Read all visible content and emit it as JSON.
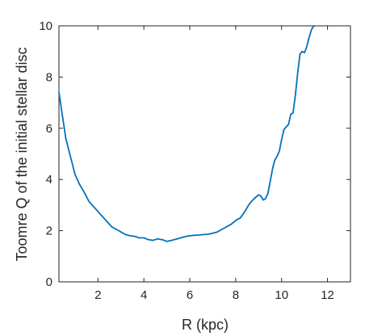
{
  "chart_data": {
    "type": "line",
    "title": "",
    "xlabel": "R (kpc)",
    "ylabel": "Toomre Q of the initial stellar disc",
    "xlim": [
      0.3,
      13
    ],
    "ylim": [
      0,
      10
    ],
    "xticks": [
      2,
      4,
      6,
      8,
      10,
      12
    ],
    "yticks": [
      0,
      2,
      4,
      6,
      8,
      10
    ],
    "grid": false,
    "box": true,
    "line_color": "#0072BD",
    "axis_color": "#262626",
    "series": [
      {
        "x": [
          0.3,
          0.4,
          0.5,
          0.6,
          0.8,
          1.0,
          1.2,
          1.4,
          1.6,
          1.8,
          2.0,
          2.2,
          2.4,
          2.6,
          2.8,
          3.0,
          3.2,
          3.4,
          3.6,
          3.8,
          4.0,
          4.2,
          4.4,
          4.6,
          4.8,
          5.0,
          5.2,
          5.4,
          5.6,
          5.8,
          6.0,
          6.2,
          6.4,
          6.6,
          6.8,
          7.0,
          7.2,
          7.4,
          7.6,
          7.8,
          8.0,
          8.2,
          8.4,
          8.6,
          8.8,
          9.0,
          9.1,
          9.2,
          9.3,
          9.4,
          9.5,
          9.6,
          9.7,
          9.8,
          9.9,
          10.0,
          10.1,
          10.2,
          10.3,
          10.4,
          10.5,
          10.6,
          10.7,
          10.8,
          10.9,
          11.0,
          11.1,
          11.2,
          11.3,
          11.4,
          11.45
        ],
        "y": [
          7.4,
          6.8,
          6.2,
          5.6,
          4.9,
          4.2,
          3.8,
          3.5,
          3.15,
          2.95,
          2.75,
          2.55,
          2.35,
          2.15,
          2.05,
          1.95,
          1.85,
          1.8,
          1.78,
          1.72,
          1.72,
          1.65,
          1.62,
          1.68,
          1.65,
          1.58,
          1.62,
          1.67,
          1.72,
          1.77,
          1.8,
          1.82,
          1.83,
          1.85,
          1.86,
          1.9,
          1.95,
          2.05,
          2.15,
          2.25,
          2.4,
          2.5,
          2.75,
          3.05,
          3.25,
          3.4,
          3.35,
          3.2,
          3.25,
          3.45,
          3.9,
          4.4,
          4.75,
          4.9,
          5.1,
          5.55,
          5.95,
          6.05,
          6.15,
          6.55,
          6.6,
          7.3,
          8.15,
          8.9,
          9.0,
          8.95,
          9.2,
          9.55,
          9.85,
          10.0,
          10.0
        ]
      }
    ]
  }
}
